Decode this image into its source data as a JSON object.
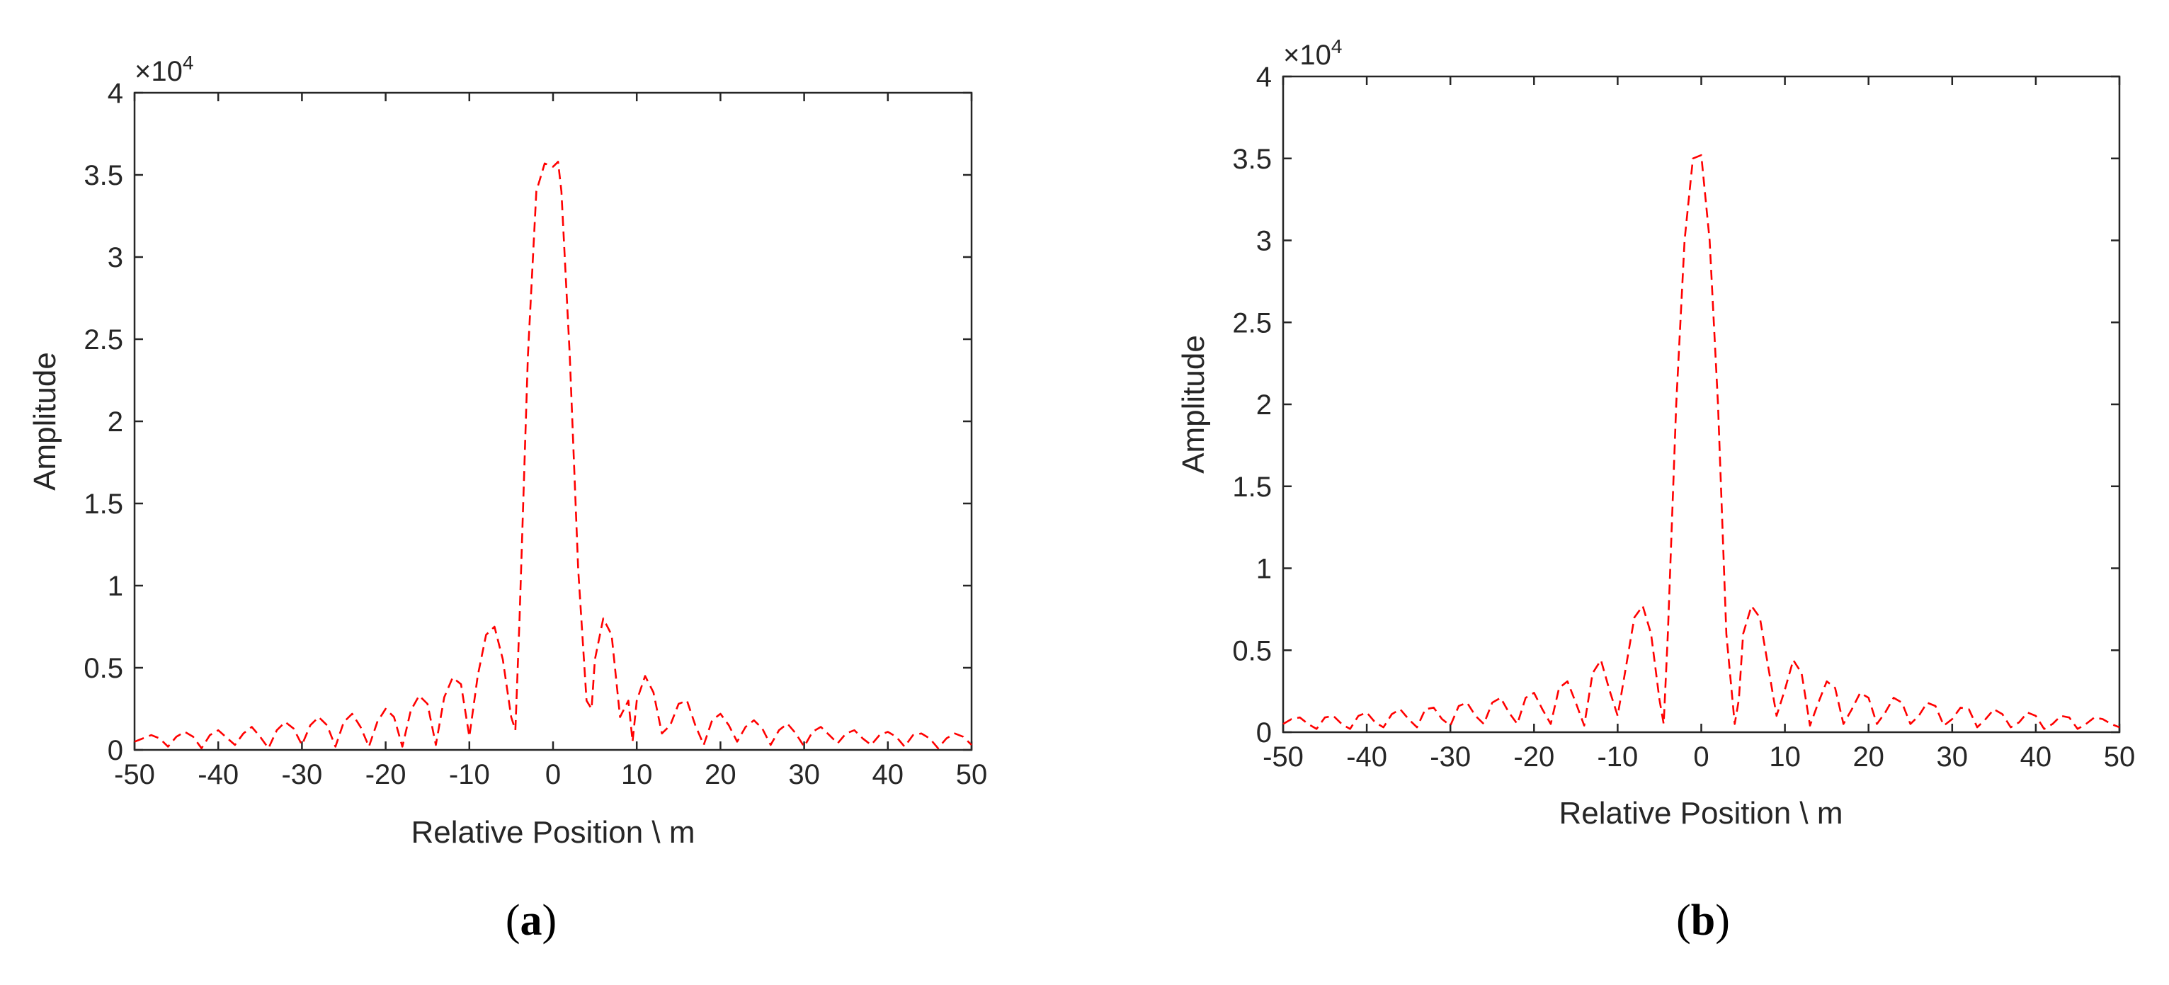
{
  "chart_data": [
    {
      "type": "line",
      "panel_label": "(a)",
      "panel_letter": "a",
      "xlabel": "Relative Position \\ m",
      "ylabel": "Amplitude",
      "y_exponent": "×10",
      "y_exponent_power": "4",
      "xlim": [
        -50,
        50
      ],
      "ylim": [
        0,
        4
      ],
      "x_ticks": [
        "-50",
        "-40",
        "-30",
        "-20",
        "-10",
        "0",
        "10",
        "20",
        "30",
        "40",
        "50"
      ],
      "y_ticks": [
        "0",
        "0.5",
        "1",
        "1.5",
        "2",
        "2.5",
        "3",
        "3.5",
        "4"
      ],
      "grid": false,
      "line_color": "#ff0000",
      "line_style": "dashed",
      "series": [
        {
          "x": [
            -50,
            -48,
            -47,
            -46,
            -45,
            -44,
            -43,
            -42,
            -41,
            -40,
            -38,
            -37,
            -36,
            -35,
            -34,
            -33,
            -32,
            -31,
            -30,
            -29,
            -28,
            -27,
            -26,
            -25,
            -24,
            -23,
            -22,
            -21,
            -20,
            -19,
            -18,
            -17,
            -16,
            -15,
            -14,
            -13,
            -12,
            -11,
            -10,
            -9,
            -8,
            -7,
            -6,
            -5,
            -4.5,
            -4,
            -3,
            -2,
            -1,
            0,
            0.6,
            1,
            2,
            3,
            4,
            4.6,
            5,
            6,
            7,
            8,
            9,
            9.5,
            10,
            11,
            12,
            13,
            14,
            15,
            16,
            17,
            18,
            19,
            20,
            21,
            22,
            23,
            24,
            25,
            26,
            27,
            28,
            29,
            30,
            31,
            32,
            33,
            34,
            35,
            36,
            37,
            38,
            39,
            40,
            41,
            42,
            43,
            44,
            45,
            46,
            47,
            48,
            49,
            50
          ],
          "y": [
            0.05,
            0.09,
            0.07,
            0.02,
            0.08,
            0.11,
            0.08,
            0.01,
            0.09,
            0.12,
            0.03,
            0.1,
            0.14,
            0.08,
            0.01,
            0.12,
            0.17,
            0.13,
            0.03,
            0.15,
            0.2,
            0.15,
            0.02,
            0.17,
            0.22,
            0.14,
            0.02,
            0.17,
            0.25,
            0.2,
            0.02,
            0.24,
            0.33,
            0.28,
            0.03,
            0.32,
            0.44,
            0.4,
            0.08,
            0.45,
            0.7,
            0.75,
            0.55,
            0.2,
            0.12,
            0.8,
            2.4,
            3.4,
            3.57,
            3.55,
            3.58,
            3.4,
            2.4,
            1.1,
            0.3,
            0.25,
            0.55,
            0.8,
            0.7,
            0.2,
            0.3,
            0.05,
            0.3,
            0.45,
            0.35,
            0.1,
            0.15,
            0.28,
            0.3,
            0.15,
            0.03,
            0.18,
            0.22,
            0.15,
            0.05,
            0.14,
            0.18,
            0.13,
            0.03,
            0.12,
            0.16,
            0.1,
            0.02,
            0.11,
            0.14,
            0.09,
            0.04,
            0.1,
            0.12,
            0.07,
            0.03,
            0.09,
            0.11,
            0.08,
            0.02,
            0.09,
            0.1,
            0.07,
            0.01,
            0.07,
            0.1,
            0.08,
            0.03
          ]
        }
      ]
    },
    {
      "type": "line",
      "panel_label": "(b)",
      "panel_letter": "b",
      "xlabel": "Relative Position \\ m",
      "ylabel": "Amplitude",
      "y_exponent": "×10",
      "y_exponent_power": "4",
      "xlim": [
        -50,
        50
      ],
      "ylim": [
        0,
        4
      ],
      "x_ticks": [
        "-50",
        "-40",
        "-30",
        "-20",
        "-10",
        "0",
        "10",
        "20",
        "30",
        "40",
        "50"
      ],
      "y_ticks": [
        "0",
        "0.5",
        "1",
        "1.5",
        "2",
        "2.5",
        "3",
        "3.5",
        "4"
      ],
      "grid": false,
      "line_color": "#ff0000",
      "line_style": "dashed",
      "series": [
        {
          "x": [
            -50,
            -49,
            -48,
            -47,
            -46,
            -45,
            -44,
            -43,
            -42,
            -41,
            -40,
            -39,
            -38,
            -37,
            -36,
            -35,
            -34,
            -33,
            -32,
            -31,
            -30,
            -29,
            -28,
            -27,
            -26,
            -25,
            -24,
            -23,
            -22,
            -21,
            -20,
            -19,
            -18,
            -17,
            -16,
            -15,
            -14,
            -13,
            -12,
            -11,
            -10,
            -9,
            -8,
            -7,
            -6,
            -5,
            -4.5,
            -4,
            -3,
            -2,
            -1,
            0,
            1,
            2,
            3,
            4,
            4.5,
            5,
            6,
            7,
            8,
            9,
            10,
            11,
            12,
            13,
            14,
            15,
            16,
            17,
            18,
            19,
            20,
            21,
            22,
            23,
            24,
            25,
            26,
            27,
            28,
            29,
            30,
            31,
            32,
            33,
            34,
            35,
            36,
            37,
            38,
            39,
            40,
            41,
            42,
            43,
            44,
            45,
            46,
            47,
            48,
            49,
            50
          ],
          "y": [
            0.05,
            0.08,
            0.09,
            0.05,
            0.02,
            0.09,
            0.1,
            0.05,
            0.02,
            0.1,
            0.12,
            0.06,
            0.03,
            0.11,
            0.14,
            0.08,
            0.03,
            0.14,
            0.15,
            0.08,
            0.04,
            0.16,
            0.18,
            0.1,
            0.05,
            0.18,
            0.21,
            0.12,
            0.05,
            0.21,
            0.24,
            0.14,
            0.05,
            0.27,
            0.31,
            0.18,
            0.04,
            0.36,
            0.44,
            0.26,
            0.1,
            0.4,
            0.7,
            0.77,
            0.6,
            0.2,
            0.05,
            0.6,
            2.0,
            3.0,
            3.5,
            3.52,
            3.0,
            2.0,
            0.6,
            0.05,
            0.2,
            0.6,
            0.77,
            0.7,
            0.4,
            0.1,
            0.26,
            0.44,
            0.36,
            0.04,
            0.18,
            0.31,
            0.27,
            0.05,
            0.14,
            0.24,
            0.21,
            0.05,
            0.12,
            0.21,
            0.18,
            0.05,
            0.1,
            0.18,
            0.16,
            0.04,
            0.08,
            0.15,
            0.14,
            0.03,
            0.08,
            0.14,
            0.11,
            0.03,
            0.06,
            0.12,
            0.1,
            0.02,
            0.05,
            0.1,
            0.09,
            0.02,
            0.05,
            0.09,
            0.08,
            0.05,
            0.03
          ]
        }
      ]
    }
  ]
}
